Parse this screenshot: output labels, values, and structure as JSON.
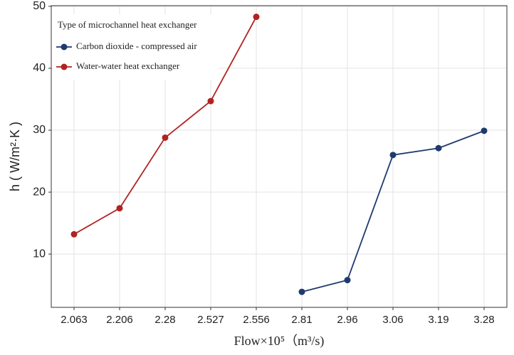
{
  "chart_data": {
    "type": "line",
    "ylabel": "h ( W/m²·K )",
    "xlabel": "Flow×10⁵（m³/s)",
    "legend_title": "Type of microchannel heat exchanger",
    "legend": "top-left",
    "grid": true,
    "categories": [
      "2.063",
      "2.206",
      "2.28",
      "2.527",
      "2.556",
      "2.81",
      "2.96",
      "3.06",
      "3.19",
      "3.28"
    ],
    "series": [
      {
        "name": "Carbon dioxide - compressed air",
        "color": "#1f3a6e",
        "values": [
          null,
          null,
          null,
          null,
          null,
          3.9,
          5.8,
          26.0,
          27.1,
          29.9
        ]
      },
      {
        "name": "Water-water heat exchanger",
        "color": "#b22222",
        "values": [
          13.2,
          17.4,
          28.8,
          34.7,
          48.3,
          null,
          null,
          null,
          null,
          null
        ]
      }
    ],
    "ylim": [
      1.4,
      50.1
    ],
    "yticks": [
      10,
      20,
      30,
      40,
      50
    ]
  }
}
